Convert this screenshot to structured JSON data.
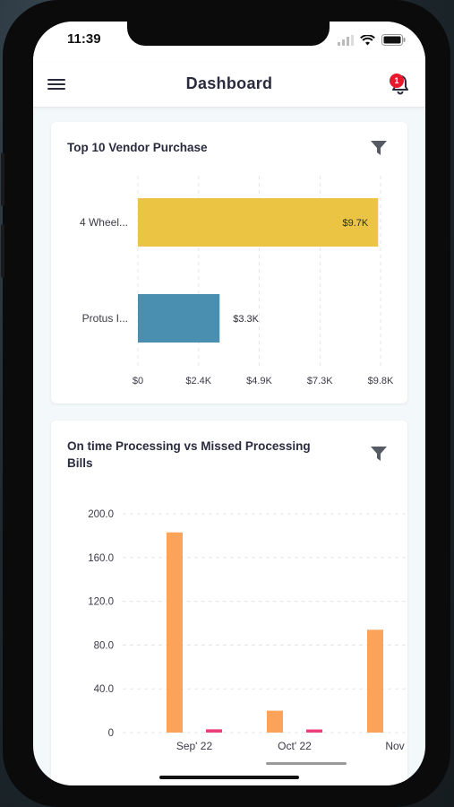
{
  "status_bar": {
    "time": "11:39"
  },
  "header": {
    "title": "Dashboard",
    "notification_count": "1"
  },
  "charts": [
    {
      "title": "Top 10 Vendor Purchase",
      "chart_data": {
        "type": "bar",
        "orientation": "horizontal",
        "categories": [
          "4 Wheel...",
          "Protus I..."
        ],
        "values": [
          9700,
          3300
        ],
        "value_labels": [
          "$9.7K",
          "$3.3K"
        ],
        "colors": [
          "#ecc444",
          "#4a8fb0"
        ],
        "x_ticks": [
          "$0",
          "$2.4K",
          "$4.9K",
          "$7.3K",
          "$9.8K"
        ],
        "xlim": [
          0,
          9800
        ],
        "grid": true
      }
    },
    {
      "title": "On time Processing vs Missed Processing Bills",
      "chart_data": {
        "type": "bar",
        "categories": [
          "Sep' 22",
          "Oct' 22",
          "Nov"
        ],
        "series": [
          {
            "values": [
              183,
              20,
              94
            ],
            "color": "#fba35a"
          },
          {
            "values": [
              3,
              2,
              null
            ],
            "color": "#ec3f7a"
          }
        ],
        "y_ticks": [
          "200.0",
          "160.0",
          "120.0",
          "80.0",
          "40.0",
          "0"
        ],
        "ylim": [
          0,
          200
        ],
        "grid": true
      }
    }
  ]
}
